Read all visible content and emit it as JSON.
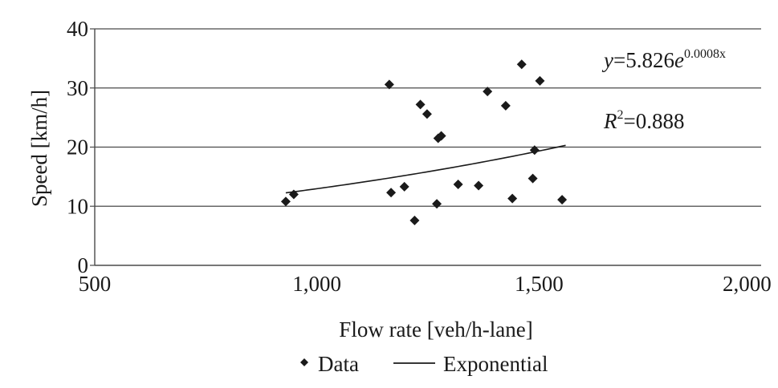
{
  "chart_data": {
    "type": "scatter",
    "xlabel": "Flow rate [veh/h-lane]",
    "ylabel": "Speed [km/h]",
    "xlim": [
      500,
      2000
    ],
    "ylim": [
      0,
      40
    ],
    "x_ticks": [
      500,
      1000,
      1500,
      2000
    ],
    "x_tick_labels": [
      "500",
      "1,000",
      "1,500",
      "2,000"
    ],
    "y_ticks": [
      0,
      10,
      20,
      30,
      40
    ],
    "y_tick_labels": [
      "0",
      "10",
      "20",
      "30",
      "40"
    ],
    "grid": "horizontal",
    "legend_position": "bottom",
    "series": [
      {
        "name": "Data",
        "marker": "diamond",
        "color": "#1a1a1a",
        "points": [
          [
            930,
            10.8
          ],
          [
            948,
            12.0
          ],
          [
            1163,
            30.6
          ],
          [
            1167,
            12.3
          ],
          [
            1197,
            13.3
          ],
          [
            1220,
            7.6
          ],
          [
            1233,
            27.2
          ],
          [
            1248,
            25.6
          ],
          [
            1270,
            10.4
          ],
          [
            1273,
            21.5
          ],
          [
            1280,
            21.9
          ],
          [
            1318,
            13.7
          ],
          [
            1364,
            13.5
          ],
          [
            1384,
            29.4
          ],
          [
            1425,
            27.0
          ],
          [
            1440,
            11.3
          ],
          [
            1461,
            34.0
          ],
          [
            1486,
            14.7
          ],
          [
            1490,
            19.5
          ],
          [
            1502,
            31.2
          ],
          [
            1552,
            11.1
          ]
        ]
      },
      {
        "name": "Exponential",
        "line": true,
        "color": "#1a1a1a",
        "fit": {
          "a": 5.826,
          "b": 0.0008,
          "x_range": [
            930,
            1560
          ]
        }
      }
    ],
    "annotations": {
      "equation": {
        "y_var": "y",
        "eq": "=5.826",
        "e": "e",
        "exponent": "0.0008x"
      },
      "r2": {
        "r": "R",
        "sup": "2",
        "value": "=0.888"
      }
    }
  }
}
